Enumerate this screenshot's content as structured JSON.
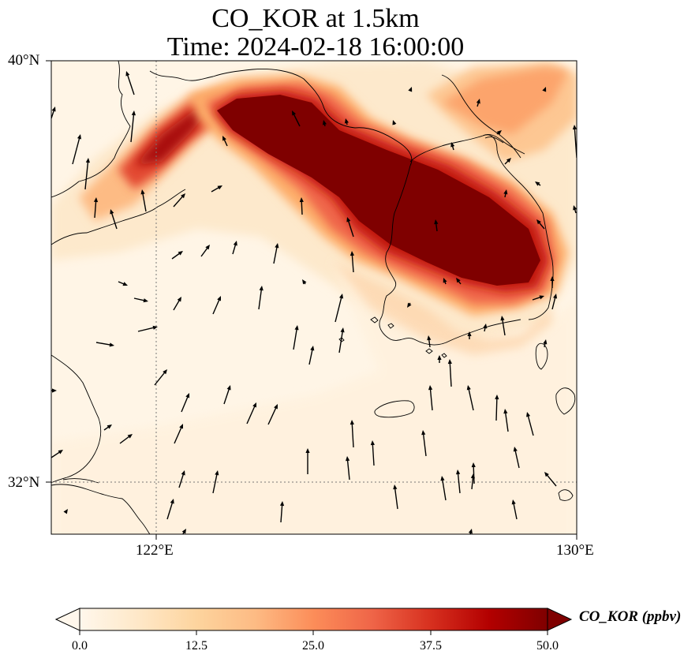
{
  "title": {
    "line1": "CO_KOR at 1.5km",
    "line2": "Time: 2024-02-18 16:00:00"
  },
  "axes": {
    "lat_ticks": [
      "40°N",
      "32°N"
    ],
    "lon_ticks": [
      "122°E",
      "130°E"
    ],
    "lat_range": [
      31,
      40
    ],
    "lon_range": [
      120,
      130
    ],
    "gridlines": "dotted"
  },
  "colorbar": {
    "label": "CO_KOR (ppbv)",
    "ticks": [
      "0.0",
      "12.5",
      "25.0",
      "37.5",
      "50.0"
    ],
    "range": [
      0,
      50
    ],
    "extend": "both",
    "colormap": "OrRd",
    "colors": [
      "#fff7ec",
      "#fee8c8",
      "#fdd49e",
      "#fdbb84",
      "#fc8d59",
      "#ef6548",
      "#d7301f",
      "#b30000",
      "#7f0000"
    ]
  },
  "map": {
    "land_line_color": "#000000",
    "background_low": "#fff5e6",
    "plume_max": "#7f0000"
  }
}
